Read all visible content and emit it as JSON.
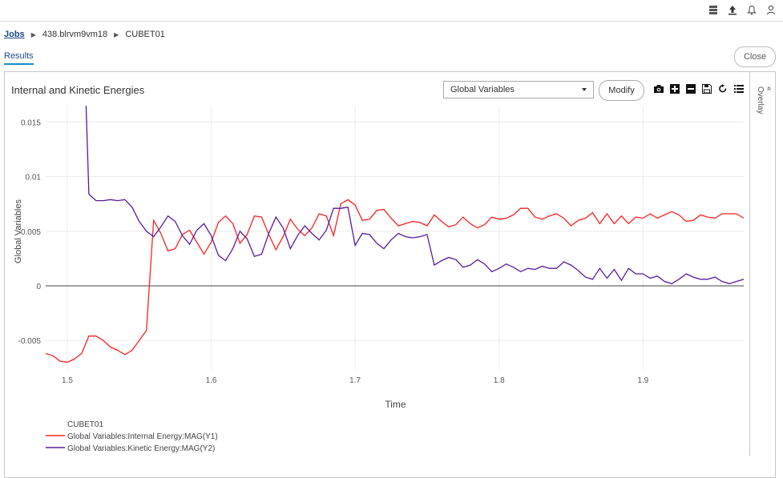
{
  "topbar": {
    "icons": [
      "server-icon",
      "upload-icon",
      "bell-icon",
      "user-icon"
    ]
  },
  "breadcrumb": {
    "root": "Jobs",
    "job": "438.blrvm9vm18",
    "item": "CUBET01"
  },
  "tabs": {
    "results": "Results"
  },
  "close_label": "Close",
  "panel": {
    "title": "Internal and Kinetic Energies",
    "select_value": "Global Variables",
    "modify_label": "Modify",
    "overlay_label": "Overlay",
    "toolbar_icons": [
      "camera-icon",
      "zoom-in-icon",
      "zoom-out-icon",
      "save-icon",
      "reset-icon",
      "list-icon"
    ]
  },
  "chart_data": {
    "type": "line",
    "xlabel": "Time",
    "ylabel": "Global Variables",
    "xlim": [
      1.485,
      1.97
    ],
    "ylim": [
      -0.0077,
      0.0165
    ],
    "xticks": [
      "1.5",
      "1.6",
      "1.7",
      "1.8",
      "1.9"
    ],
    "xtick_values": [
      1.5,
      1.6,
      1.7,
      1.8,
      1.9
    ],
    "yticks": [
      "0.015",
      "0.01",
      "0.005",
      "0",
      "-0.005"
    ],
    "ytick_values": [
      0.015,
      0.01,
      0.005,
      0,
      -0.005
    ],
    "grid": true,
    "legend_title": "CUBET01",
    "legend_placement": "bottom-left",
    "series": [
      {
        "name": "Global Variables:Internal Energy:MAG(Y1)",
        "color": "#ff2020",
        "x": [
          1.485,
          1.49,
          1.495,
          1.5,
          1.505,
          1.51,
          1.515,
          1.52,
          1.525,
          1.53,
          1.535,
          1.54,
          1.545,
          1.55,
          1.555,
          1.56,
          1.565,
          1.57,
          1.575,
          1.58,
          1.585,
          1.59,
          1.595,
          1.6,
          1.605,
          1.61,
          1.615,
          1.62,
          1.625,
          1.63,
          1.635,
          1.64,
          1.645,
          1.65,
          1.655,
          1.66,
          1.665,
          1.67,
          1.675,
          1.68,
          1.685,
          1.69,
          1.695,
          1.7,
          1.705,
          1.71,
          1.715,
          1.72,
          1.725,
          1.73,
          1.735,
          1.74,
          1.745,
          1.75,
          1.755,
          1.76,
          1.765,
          1.77,
          1.775,
          1.78,
          1.785,
          1.79,
          1.795,
          1.8,
          1.805,
          1.81,
          1.815,
          1.82,
          1.825,
          1.83,
          1.835,
          1.84,
          1.845,
          1.85,
          1.855,
          1.86,
          1.865,
          1.87,
          1.875,
          1.88,
          1.885,
          1.89,
          1.895,
          1.9,
          1.905,
          1.91,
          1.915,
          1.92,
          1.925,
          1.93,
          1.935,
          1.94,
          1.945,
          1.95,
          1.955,
          1.96,
          1.965,
          1.97
        ],
        "y": [
          -0.0062,
          -0.0064,
          -0.0069,
          -0.007,
          -0.0067,
          -0.0062,
          -0.0046,
          -0.0046,
          -0.005,
          -0.0056,
          -0.0059,
          -0.0063,
          -0.0059,
          -0.005,
          -0.0041,
          0.006,
          0.0048,
          0.0032,
          0.0034,
          0.0047,
          0.0051,
          0.004,
          0.0029,
          0.004,
          0.0058,
          0.0064,
          0.0057,
          0.0039,
          0.0047,
          0.0064,
          0.0063,
          0.0047,
          0.0033,
          0.0045,
          0.0061,
          0.0052,
          0.0046,
          0.0053,
          0.0066,
          0.0064,
          0.0046,
          0.0075,
          0.0079,
          0.0074,
          0.006,
          0.0061,
          0.0069,
          0.007,
          0.0062,
          0.0055,
          0.0057,
          0.0059,
          0.0058,
          0.0055,
          0.0065,
          0.0059,
          0.0054,
          0.0056,
          0.0063,
          0.0057,
          0.0053,
          0.0056,
          0.0063,
          0.0061,
          0.0062,
          0.0065,
          0.0071,
          0.0071,
          0.0063,
          0.0061,
          0.0064,
          0.0066,
          0.0062,
          0.0055,
          0.006,
          0.0062,
          0.0067,
          0.0057,
          0.0066,
          0.0057,
          0.0064,
          0.0057,
          0.0063,
          0.0062,
          0.0066,
          0.0062,
          0.0065,
          0.0068,
          0.0065,
          0.0059,
          0.006,
          0.0065,
          0.0063,
          0.0062,
          0.0066,
          0.0066,
          0.0066,
          0.0062
        ]
      },
      {
        "name": "Global Variables:Kinetic Energy:MAG(Y2)",
        "color": "#5a1a9a",
        "x": [
          1.513,
          1.515,
          1.52,
          1.525,
          1.53,
          1.535,
          1.54,
          1.545,
          1.55,
          1.555,
          1.56,
          1.565,
          1.57,
          1.575,
          1.58,
          1.585,
          1.59,
          1.595,
          1.6,
          1.605,
          1.61,
          1.615,
          1.62,
          1.625,
          1.63,
          1.635,
          1.64,
          1.645,
          1.65,
          1.655,
          1.66,
          1.665,
          1.67,
          1.675,
          1.68,
          1.685,
          1.69,
          1.695,
          1.7,
          1.705,
          1.71,
          1.715,
          1.72,
          1.725,
          1.73,
          1.735,
          1.74,
          1.745,
          1.75,
          1.755,
          1.76,
          1.765,
          1.77,
          1.775,
          1.78,
          1.785,
          1.79,
          1.795,
          1.8,
          1.805,
          1.81,
          1.815,
          1.82,
          1.825,
          1.83,
          1.835,
          1.84,
          1.845,
          1.85,
          1.855,
          1.86,
          1.865,
          1.87,
          1.875,
          1.88,
          1.885,
          1.89,
          1.895,
          1.9,
          1.905,
          1.91,
          1.915,
          1.92,
          1.925,
          1.93,
          1.935,
          1.94,
          1.945,
          1.95,
          1.955,
          1.96,
          1.965,
          1.97
        ],
        "y": [
          0.0168,
          0.0084,
          0.0078,
          0.0078,
          0.0079,
          0.0078,
          0.0079,
          0.0072,
          0.0059,
          0.005,
          0.0045,
          0.0054,
          0.0064,
          0.0059,
          0.0046,
          0.0038,
          0.0051,
          0.0057,
          0.0046,
          0.0028,
          0.0023,
          0.0034,
          0.005,
          0.0043,
          0.0027,
          0.0029,
          0.0048,
          0.0063,
          0.0053,
          0.0034,
          0.0046,
          0.0055,
          0.0048,
          0.0042,
          0.0051,
          0.0071,
          0.0071,
          0.0072,
          0.0037,
          0.0048,
          0.0047,
          0.0039,
          0.0034,
          0.0042,
          0.0048,
          0.0045,
          0.0044,
          0.0045,
          0.0047,
          0.0019,
          0.0023,
          0.0026,
          0.0024,
          0.0017,
          0.0019,
          0.0024,
          0.002,
          0.0013,
          0.0016,
          0.002,
          0.0017,
          0.0013,
          0.0016,
          0.0015,
          0.0018,
          0.0016,
          0.0016,
          0.0022,
          0.0019,
          0.0014,
          0.0008,
          0.0006,
          0.0016,
          0.0007,
          0.0015,
          0.0005,
          0.0016,
          0.0011,
          0.0011,
          0.0007,
          0.0009,
          0.0004,
          0.0002,
          0.0006,
          0.0011,
          0.0008,
          0.0006,
          0.0006,
          0.0008,
          0.0004,
          0.0002,
          0.0004,
          0.0006
        ]
      }
    ]
  }
}
